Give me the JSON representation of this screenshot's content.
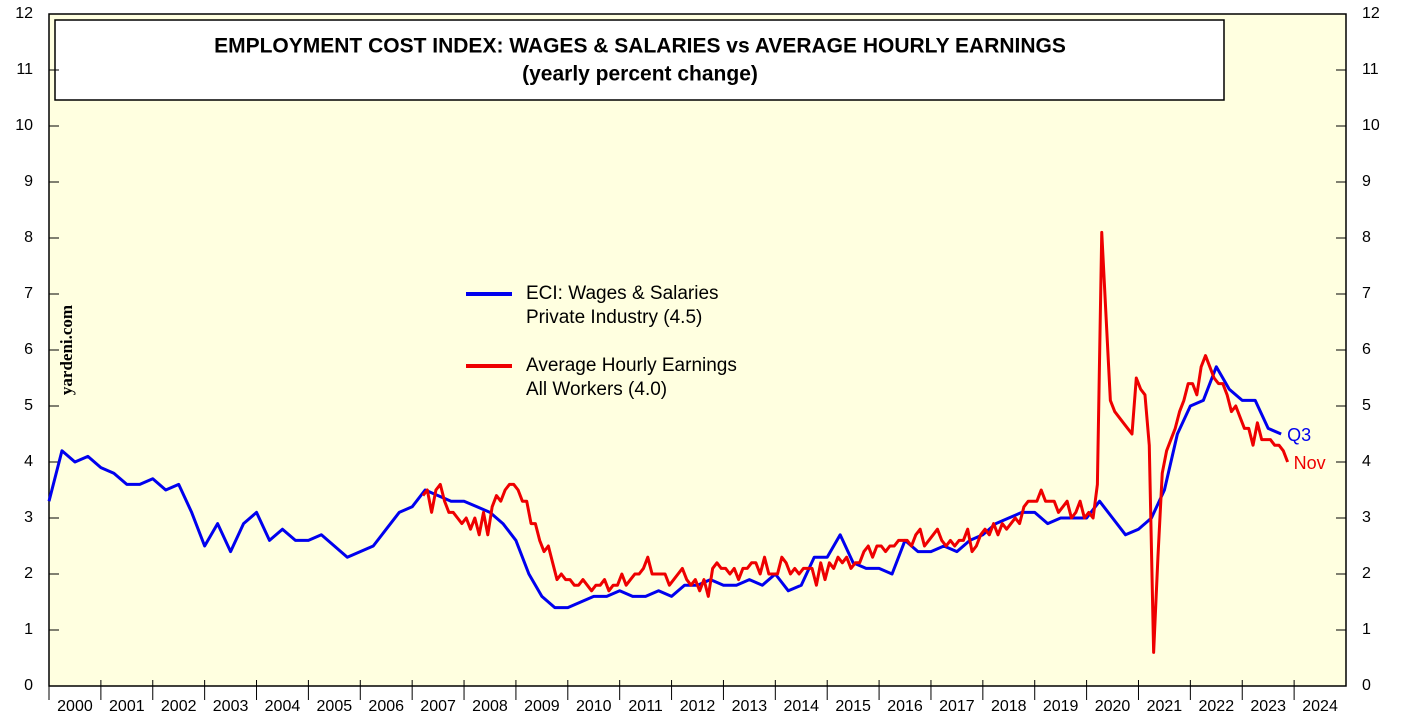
{
  "chart_data": {
    "type": "line",
    "title": "EMPLOYMENT COST INDEX: WAGES & SALARIES vs AVERAGE HOURLY EARNINGS",
    "subtitle": "(yearly percent change)",
    "watermark": "yardeni.com",
    "xlim": [
      2000,
      2025
    ],
    "xticks": [
      {
        "value": 2000,
        "label": "2000"
      },
      {
        "value": 2001,
        "label": "2001"
      },
      {
        "value": 2002,
        "label": "2002"
      },
      {
        "value": 2003,
        "label": "2003"
      },
      {
        "value": 2004,
        "label": "2004"
      },
      {
        "value": 2005,
        "label": "2005"
      },
      {
        "value": 2006,
        "label": "2006"
      },
      {
        "value": 2007,
        "label": "2007"
      },
      {
        "value": 2008,
        "label": "2008"
      },
      {
        "value": 2009,
        "label": "2009"
      },
      {
        "value": 2010,
        "label": "2010"
      },
      {
        "value": 2011,
        "label": "2011"
      },
      {
        "value": 2012,
        "label": "2012"
      },
      {
        "value": 2013,
        "label": "2013"
      },
      {
        "value": 2014,
        "label": "2014"
      },
      {
        "value": 2015,
        "label": "2015"
      },
      {
        "value": 2016,
        "label": "2016"
      },
      {
        "value": 2017,
        "label": "2017"
      },
      {
        "value": 2018,
        "label": "2018"
      },
      {
        "value": 2019,
        "label": "2019"
      },
      {
        "value": 2020,
        "label": "2020"
      },
      {
        "value": 2021,
        "label": "2021"
      },
      {
        "value": 2022,
        "label": "2022"
      },
      {
        "value": 2023,
        "label": "2023"
      },
      {
        "value": 2024,
        "label": "2024"
      }
    ],
    "ylim": [
      0,
      12
    ],
    "yticks": [
      0,
      1,
      2,
      3,
      4,
      5,
      6,
      7,
      8,
      9,
      10,
      11,
      12
    ],
    "series": [
      {
        "name": "ECI: Wages & Salaries",
        "name_detail": "Private Industry (4.5)",
        "end_label": "Q3",
        "color": "#0000ee",
        "x": [
          2000,
          2000.25,
          2000.5,
          2000.75,
          2001,
          2001.25,
          2001.5,
          2001.75,
          2002,
          2002.25,
          2002.5,
          2002.75,
          2003,
          2003.25,
          2003.5,
          2003.75,
          2004,
          2004.25,
          2004.5,
          2004.75,
          2005,
          2005.25,
          2005.5,
          2005.75,
          2006,
          2006.25,
          2006.5,
          2006.75,
          2007,
          2007.25,
          2007.5,
          2007.75,
          2008,
          2008.25,
          2008.5,
          2008.75,
          2009,
          2009.25,
          2009.5,
          2009.75,
          2010,
          2010.25,
          2010.5,
          2010.75,
          2011,
          2011.25,
          2011.5,
          2011.75,
          2012,
          2012.25,
          2012.5,
          2012.75,
          2013,
          2013.25,
          2013.5,
          2013.75,
          2014,
          2014.25,
          2014.5,
          2014.75,
          2015,
          2015.25,
          2015.5,
          2015.75,
          2016,
          2016.25,
          2016.5,
          2016.75,
          2017,
          2017.25,
          2017.5,
          2017.75,
          2018,
          2018.25,
          2018.5,
          2018.75,
          2019,
          2019.25,
          2019.5,
          2019.75,
          2020,
          2020.25,
          2020.5,
          2020.75,
          2021,
          2021.25,
          2021.5,
          2021.75,
          2022,
          2022.25,
          2022.5,
          2022.75,
          2023,
          2023.25,
          2023.5,
          2023.75
        ],
        "values": [
          3.3,
          4.2,
          4.0,
          4.1,
          3.9,
          3.8,
          3.6,
          3.6,
          3.7,
          3.5,
          3.6,
          3.1,
          2.5,
          2.9,
          2.4,
          2.9,
          3.1,
          2.6,
          2.8,
          2.6,
          2.6,
          2.7,
          2.5,
          2.3,
          2.4,
          2.5,
          2.8,
          3.1,
          3.2,
          3.5,
          3.4,
          3.3,
          3.3,
          3.2,
          3.1,
          2.9,
          2.6,
          2.0,
          1.6,
          1.4,
          1.4,
          1.5,
          1.6,
          1.6,
          1.7,
          1.6,
          1.6,
          1.7,
          1.6,
          1.8,
          1.8,
          1.9,
          1.8,
          1.8,
          1.9,
          1.8,
          2.0,
          1.7,
          1.8,
          2.3,
          2.3,
          2.7,
          2.2,
          2.1,
          2.1,
          2.0,
          2.6,
          2.4,
          2.4,
          2.5,
          2.4,
          2.6,
          2.7,
          2.9,
          3.0,
          3.1,
          3.1,
          2.9,
          3.0,
          3.0,
          3.0,
          3.3,
          3.0,
          2.7,
          2.8,
          3.0,
          3.5,
          4.5,
          5.0,
          5.1,
          5.7,
          5.3,
          5.1,
          5.1,
          4.6,
          4.5
        ]
      },
      {
        "name": "Average Hourly Earnings",
        "name_detail": "All Workers (4.0)",
        "end_label": "Nov",
        "color": "#ee0000",
        "x": [
          2007.208,
          2007.292,
          2007.375,
          2007.458,
          2007.542,
          2007.625,
          2007.708,
          2007.792,
          2007.875,
          2007.958,
          2008.042,
          2008.125,
          2008.208,
          2008.292,
          2008.375,
          2008.458,
          2008.542,
          2008.625,
          2008.708,
          2008.792,
          2008.875,
          2008.958,
          2009.042,
          2009.125,
          2009.208,
          2009.292,
          2009.375,
          2009.458,
          2009.542,
          2009.625,
          2009.708,
          2009.792,
          2009.875,
          2009.958,
          2010.042,
          2010.125,
          2010.208,
          2010.292,
          2010.375,
          2010.458,
          2010.542,
          2010.625,
          2010.708,
          2010.792,
          2010.875,
          2010.958,
          2011.042,
          2011.125,
          2011.208,
          2011.292,
          2011.375,
          2011.458,
          2011.542,
          2011.625,
          2011.708,
          2011.792,
          2011.875,
          2011.958,
          2012.042,
          2012.125,
          2012.208,
          2012.292,
          2012.375,
          2012.458,
          2012.542,
          2012.625,
          2012.708,
          2012.792,
          2012.875,
          2012.958,
          2013.042,
          2013.125,
          2013.208,
          2013.292,
          2013.375,
          2013.458,
          2013.542,
          2013.625,
          2013.708,
          2013.792,
          2013.875,
          2013.958,
          2014.042,
          2014.125,
          2014.208,
          2014.292,
          2014.375,
          2014.458,
          2014.542,
          2014.625,
          2014.708,
          2014.792,
          2014.875,
          2014.958,
          2015.042,
          2015.125,
          2015.208,
          2015.292,
          2015.375,
          2015.458,
          2015.542,
          2015.625,
          2015.708,
          2015.792,
          2015.875,
          2015.958,
          2016.042,
          2016.125,
          2016.208,
          2016.292,
          2016.375,
          2016.458,
          2016.542,
          2016.625,
          2016.708,
          2016.792,
          2016.875,
          2016.958,
          2017.042,
          2017.125,
          2017.208,
          2017.292,
          2017.375,
          2017.458,
          2017.542,
          2017.625,
          2017.708,
          2017.792,
          2017.875,
          2017.958,
          2018.042,
          2018.125,
          2018.208,
          2018.292,
          2018.375,
          2018.458,
          2018.542,
          2018.625,
          2018.708,
          2018.792,
          2018.875,
          2018.958,
          2019.042,
          2019.125,
          2019.208,
          2019.292,
          2019.375,
          2019.458,
          2019.542,
          2019.625,
          2019.708,
          2019.792,
          2019.875,
          2019.958,
          2020.042,
          2020.125,
          2020.208,
          2020.292,
          2020.375,
          2020.458,
          2020.542,
          2020.625,
          2020.708,
          2020.792,
          2020.875,
          2020.958,
          2021.042,
          2021.125,
          2021.208,
          2021.292,
          2021.375,
          2021.458,
          2021.542,
          2021.625,
          2021.708,
          2021.792,
          2021.875,
          2021.958,
          2022.042,
          2022.125,
          2022.208,
          2022.292,
          2022.375,
          2022.458,
          2022.542,
          2022.625,
          2022.708,
          2022.792,
          2022.875,
          2022.958,
          2023.042,
          2023.125,
          2023.208,
          2023.292,
          2023.375,
          2023.458,
          2023.542,
          2023.625,
          2023.708,
          2023.792,
          2023.875
        ],
        "values": [
          3.4,
          3.5,
          3.1,
          3.5,
          3.6,
          3.3,
          3.1,
          3.1,
          3.0,
          2.9,
          3.0,
          2.8,
          3.0,
          2.7,
          3.1,
          2.7,
          3.2,
          3.4,
          3.3,
          3.5,
          3.6,
          3.6,
          3.5,
          3.3,
          3.3,
          2.9,
          2.9,
          2.6,
          2.4,
          2.5,
          2.2,
          1.9,
          2.0,
          1.9,
          1.9,
          1.8,
          1.8,
          1.9,
          1.8,
          1.7,
          1.8,
          1.8,
          1.9,
          1.7,
          1.8,
          1.8,
          2.0,
          1.8,
          1.9,
          2.0,
          2.0,
          2.1,
          2.3,
          2.0,
          2.0,
          2.0,
          2.0,
          1.8,
          1.9,
          2.0,
          2.1,
          1.9,
          1.8,
          1.9,
          1.7,
          1.9,
          1.6,
          2.1,
          2.2,
          2.1,
          2.1,
          2.0,
          2.1,
          1.9,
          2.1,
          2.1,
          2.2,
          2.2,
          2.0,
          2.3,
          2.0,
          2.0,
          2.0,
          2.3,
          2.2,
          2.0,
          2.1,
          2.0,
          2.1,
          2.1,
          2.1,
          1.8,
          2.2,
          1.9,
          2.2,
          2.1,
          2.3,
          2.2,
          2.3,
          2.1,
          2.2,
          2.2,
          2.4,
          2.5,
          2.3,
          2.5,
          2.5,
          2.4,
          2.5,
          2.5,
          2.6,
          2.6,
          2.6,
          2.5,
          2.7,
          2.8,
          2.5,
          2.6,
          2.7,
          2.8,
          2.6,
          2.5,
          2.6,
          2.5,
          2.6,
          2.6,
          2.8,
          2.4,
          2.5,
          2.7,
          2.8,
          2.7,
          2.9,
          2.7,
          2.9,
          2.8,
          2.9,
          3.0,
          2.9,
          3.2,
          3.3,
          3.3,
          3.3,
          3.5,
          3.3,
          3.3,
          3.3,
          3.1,
          3.2,
          3.3,
          3.0,
          3.1,
          3.3,
          3.0,
          3.1,
          3.0,
          3.6,
          8.1,
          6.6,
          5.1,
          4.9,
          4.8,
          4.7,
          4.6,
          4.5,
          5.5,
          5.3,
          5.2,
          4.3,
          0.6,
          2.3,
          3.8,
          4.2,
          4.4,
          4.6,
          4.9,
          5.1,
          5.4,
          5.4,
          5.2,
          5.7,
          5.9,
          5.7,
          5.5,
          5.4,
          5.4,
          5.2,
          4.9,
          5.0,
          4.8,
          4.6,
          4.6,
          4.3,
          4.7,
          4.4,
          4.4,
          4.4,
          4.3,
          4.3,
          4.2,
          4.0
        ]
      }
    ]
  }
}
